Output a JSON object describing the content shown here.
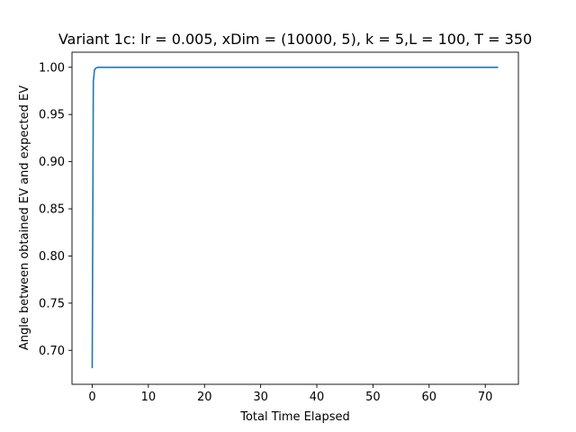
{
  "chart_data": {
    "type": "line",
    "title": "Variant 1c: lr = 0.005, xDim = (10000, 5), k = 5,L = 100, T = 350",
    "xlabel": "Total Time Elapsed",
    "ylabel": "Angle between obtained EV and expected EV",
    "xlim": [
      -3.6,
      75.9
    ],
    "ylim": [
      0.664,
      1.016
    ],
    "xticks": [
      0,
      10,
      20,
      30,
      40,
      50,
      60,
      70
    ],
    "xtick_labels": [
      "0",
      "10",
      "20",
      "30",
      "40",
      "50",
      "60",
      "70"
    ],
    "yticks": [
      0.7,
      0.75,
      0.8,
      0.85,
      0.9,
      0.95,
      1.0
    ],
    "ytick_labels": [
      "0.70",
      "0.75",
      "0.80",
      "0.85",
      "0.90",
      "0.95",
      "1.00"
    ],
    "grid": false,
    "series": [
      {
        "color": "#1f77b4",
        "x": [
          0.0,
          0.2,
          0.4,
          0.6,
          1.0,
          2.0,
          10.0,
          30.0,
          50.0,
          72.3
        ],
        "y": [
          0.681,
          0.985,
          0.997,
          0.999,
          1.0,
          1.0,
          1.0,
          1.0,
          1.0,
          1.0
        ]
      }
    ]
  }
}
